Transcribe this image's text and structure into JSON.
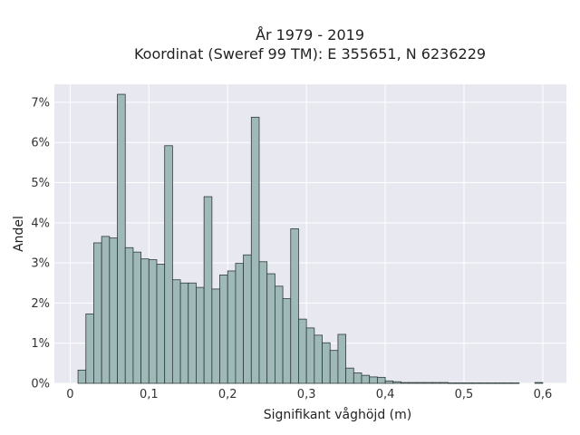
{
  "chart_data": {
    "type": "bar",
    "title_line1": "År 1979 - 2019",
    "title_line2": "Koordinat (Sweref 99 TM): E 355651, N 6236229",
    "xlabel": "Signifikant våghöjd (m)",
    "ylabel": "Andel",
    "x_ticks": [
      "0",
      "0,1",
      "0,2",
      "0,3",
      "0,4",
      "0,5",
      "0,6"
    ],
    "y_ticks": [
      "0%",
      "1%",
      "2%",
      "3%",
      "4%",
      "5%",
      "6%",
      "7%"
    ],
    "xlim": [
      -0.02,
      0.63
    ],
    "ylim": [
      0,
      7.45
    ],
    "bin_width": 0.01,
    "bins_start": [
      0.01,
      0.02,
      0.03,
      0.04,
      0.05,
      0.06,
      0.07,
      0.08,
      0.09,
      0.1,
      0.11,
      0.12,
      0.13,
      0.14,
      0.15,
      0.16,
      0.17,
      0.18,
      0.19,
      0.2,
      0.21,
      0.22,
      0.23,
      0.24,
      0.25,
      0.26,
      0.27,
      0.28,
      0.29,
      0.3,
      0.31,
      0.32,
      0.33,
      0.34,
      0.35,
      0.36,
      0.37,
      0.38,
      0.39,
      0.4,
      0.41,
      0.42,
      0.43,
      0.44,
      0.45,
      0.46,
      0.47,
      0.48,
      0.49,
      0.5,
      0.51,
      0.52,
      0.53,
      0.54,
      0.55,
      0.56,
      0.57,
      0.58,
      0.59
    ],
    "values": [
      0.33,
      1.73,
      3.5,
      3.66,
      3.62,
      7.2,
      3.38,
      3.27,
      3.1,
      3.08,
      2.97,
      5.92,
      2.58,
      2.5,
      2.5,
      2.39,
      4.65,
      2.35,
      2.7,
      2.8,
      2.99,
      3.2,
      6.63,
      3.03,
      2.73,
      2.42,
      2.11,
      3.85,
      1.6,
      1.38,
      1.2,
      1.01,
      0.82,
      1.22,
      0.38,
      0.26,
      0.2,
      0.16,
      0.15,
      0.06,
      0.04,
      0.02,
      0.02,
      0.02,
      0.02,
      0.02,
      0.02,
      0.01,
      0.01,
      0.01,
      0.01,
      0.01,
      0.01,
      0.01,
      0.01,
      0.01,
      0.0,
      0.0,
      0.02
    ],
    "bar_color": "#9fb9b8",
    "bar_edge_color": "#2e3b3b",
    "plot_bg": "#e8e8f1",
    "grid": true,
    "grid_color": "#ffffff",
    "legend": "none"
  }
}
